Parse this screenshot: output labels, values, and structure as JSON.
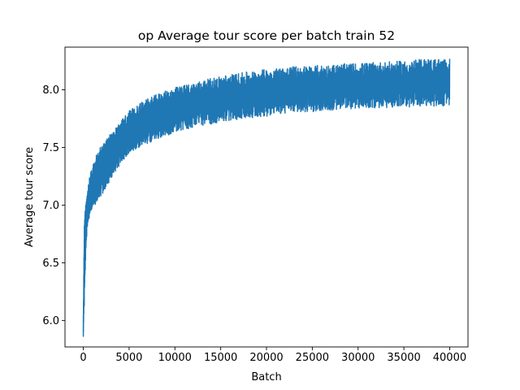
{
  "chart_data": {
    "type": "line",
    "title": "op Average tour score per batch train 52",
    "xlabel": "Batch",
    "ylabel": "Average tour score",
    "xlim": [
      -2000,
      42000
    ],
    "ylim": [
      5.77,
      8.37
    ],
    "xticks": [
      0,
      5000,
      10000,
      15000,
      20000,
      25000,
      30000,
      35000,
      40000
    ],
    "yticks": [
      6.0,
      6.5,
      7.0,
      7.5,
      8.0
    ],
    "ytick_labels": [
      "6.0",
      "6.5",
      "7.0",
      "7.5",
      "8.0"
    ],
    "grid": false,
    "legend": "none",
    "line_color": "#1f77b4",
    "series": [
      {
        "x": [
          0,
          100,
          200,
          400,
          700,
          1000,
          1500,
          2000,
          3000,
          4000,
          5000,
          6000,
          8000,
          10000,
          12500,
          15000,
          17500,
          20000,
          22500,
          25000,
          27500,
          30000,
          32500,
          35000,
          37500,
          40000
        ],
        "center": [
          5.95,
          6.45,
          6.72,
          6.92,
          7.05,
          7.12,
          7.22,
          7.3,
          7.42,
          7.52,
          7.6,
          7.66,
          7.75,
          7.82,
          7.88,
          7.92,
          7.95,
          7.98,
          8.0,
          8.01,
          8.02,
          8.03,
          8.04,
          8.05,
          8.06,
          8.06
        ],
        "upper": [
          6.0,
          6.8,
          6.95,
          7.1,
          7.25,
          7.35,
          7.45,
          7.52,
          7.62,
          7.72,
          7.82,
          7.88,
          7.96,
          8.02,
          8.07,
          8.12,
          8.15,
          8.18,
          8.2,
          8.21,
          8.22,
          8.23,
          8.24,
          8.25,
          8.27,
          8.27
        ],
        "lower": [
          5.84,
          6.1,
          6.4,
          6.78,
          6.92,
          6.98,
          7.02,
          7.08,
          7.22,
          7.35,
          7.45,
          7.5,
          7.57,
          7.63,
          7.68,
          7.72,
          7.75,
          7.77,
          7.8,
          7.81,
          7.82,
          7.84,
          7.84,
          7.85,
          7.85,
          7.86
        ]
      }
    ]
  }
}
